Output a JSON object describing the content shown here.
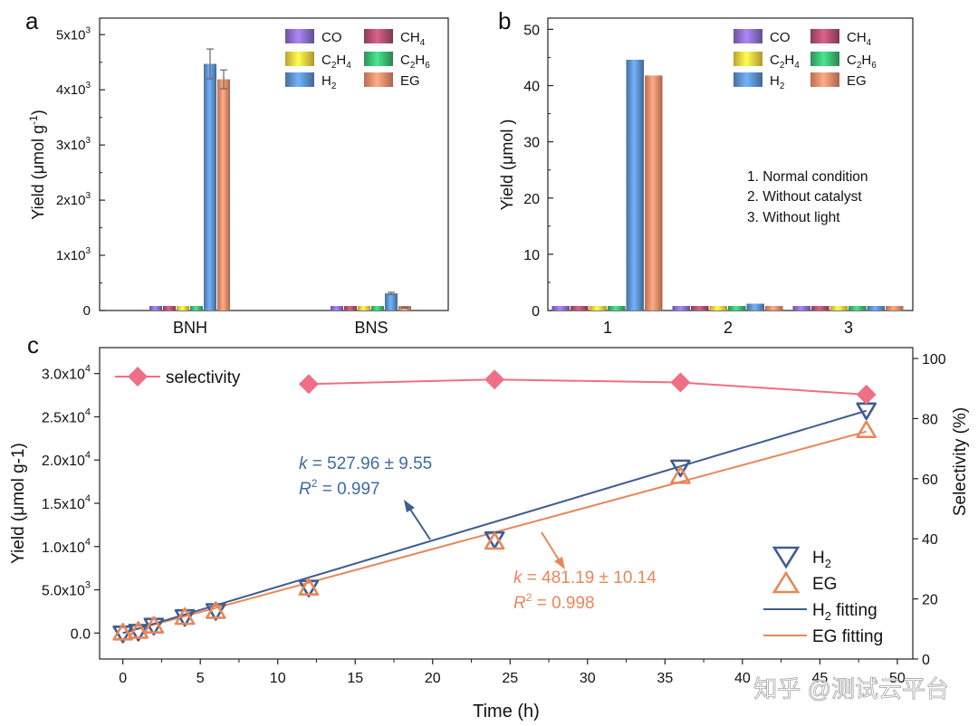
{
  "panels": {
    "a": {
      "label": "a",
      "ylabel_main": "Yield (",
      "ylabel_mu": "μ",
      "ylabel_rest": "mol g",
      "ylabel_sup": "-1",
      "ylabel_end": ")",
      "yticks": [
        {
          "value": 0,
          "mant": "0",
          "exp": ""
        },
        {
          "value": 1000,
          "mant": "1x10",
          "exp": "3"
        },
        {
          "value": 2000,
          "mant": "2x10",
          "exp": "3"
        },
        {
          "value": 3000,
          "mant": "3x10",
          "exp": "3"
        },
        {
          "value": 4000,
          "mant": "4x10",
          "exp": "3"
        },
        {
          "value": 5000,
          "mant": "5x10",
          "exp": "3"
        }
      ]
    },
    "b": {
      "label": "b",
      "ylabel": "Yield (μmol )",
      "yticks": [
        "0",
        "10",
        "20",
        "30",
        "40",
        "50"
      ],
      "notes": [
        "1. Normal condition",
        "2. Without catalyst",
        "3. Without light"
      ]
    },
    "c": {
      "label": "c",
      "xlabel": "Time (h)",
      "ylabel_left": "Yield (μmol g-1)",
      "ylabel_right": "Selectivity (%)",
      "xticks": [
        "0",
        "5",
        "10",
        "15",
        "20",
        "25",
        "30",
        "35",
        "40",
        "45",
        "50"
      ],
      "yticks_left": [
        {
          "value": 0,
          "mant": "0.0",
          "exp": ""
        },
        {
          "value": 5000,
          "mant": "5.0x10",
          "exp": "3"
        },
        {
          "value": 10000,
          "mant": "1.0x10",
          "exp": "4"
        },
        {
          "value": 15000,
          "mant": "1.5x10",
          "exp": "4"
        },
        {
          "value": 20000,
          "mant": "2.0x10",
          "exp": "4"
        },
        {
          "value": 25000,
          "mant": "2.5x10",
          "exp": "4"
        },
        {
          "value": 30000,
          "mant": "3.0x10",
          "exp": "4"
        }
      ],
      "yticks_right": [
        "0",
        "20",
        "40",
        "60",
        "80",
        "100"
      ],
      "h2_fit": {
        "k_label": "k",
        "k_text": " = 527.96 ± 9.55",
        "r2_label": "R",
        "r2_text": " = 0.997"
      },
      "eg_fit": {
        "k_label": "k",
        "k_text": " = 481.19 ± 10.14",
        "r2_label": "R",
        "r2_text": " = 0.998"
      },
      "legend": {
        "selectivity": "selectivity",
        "h2": "H",
        "eg": "EG",
        "h2_fit": "H",
        "h2_fit_suffix": " fitting",
        "eg_fit": "EG fitting"
      }
    }
  },
  "legend_ab": {
    "co": "CO",
    "ch4": "CH",
    "c2h4": "C",
    "c2h6": "C",
    "h2": "H",
    "eg": "EG"
  },
  "watermark": "知乎 @测试云平台",
  "colors": {
    "co": "#8a6cc8",
    "ch4": "#b04e6e",
    "c2h4": "#f5cf3f",
    "c2h6": "#3bb872",
    "h2": "#5b8fc9",
    "eg": "#f08a6a",
    "h2_line": "#3f5d8f",
    "eg_line": "#e8875a",
    "selectivity": "#ee6f86",
    "h2_text": "#3f6aa0",
    "eg_text": "#e8875a"
  },
  "chart_data": [
    {
      "type": "bar",
      "title": "a",
      "categories": [
        "BNH",
        "BNS"
      ],
      "ylabel": "Yield (μmol g-1)",
      "ylim": [
        0,
        5300
      ],
      "series": [
        {
          "name": "CO",
          "values": [
            40,
            35
          ]
        },
        {
          "name": "CH4",
          "values": [
            40,
            35
          ]
        },
        {
          "name": "C2H4",
          "values": [
            15,
            10
          ]
        },
        {
          "name": "C2H6",
          "values": [
            35,
            30
          ]
        },
        {
          "name": "H2",
          "values": [
            4470,
            310
          ],
          "errors": [
            270,
            20
          ]
        },
        {
          "name": "EG",
          "values": [
            4190,
            55
          ],
          "errors": [
            170,
            10
          ]
        }
      ]
    },
    {
      "type": "bar",
      "title": "b",
      "categories": [
        "1",
        "2",
        "3"
      ],
      "ylabel": "Yield (μmol )",
      "ylim": [
        0,
        52
      ],
      "series": [
        {
          "name": "CO",
          "values": [
            0.4,
            0.2,
            0.2
          ]
        },
        {
          "name": "CH4",
          "values": [
            0.4,
            0.2,
            0.2
          ]
        },
        {
          "name": "C2H4",
          "values": [
            0.1,
            0.1,
            0.1
          ]
        },
        {
          "name": "C2H6",
          "values": [
            0.3,
            0.2,
            0.2
          ]
        },
        {
          "name": "H2",
          "values": [
            44.6,
            1.2,
            0.2
          ]
        },
        {
          "name": "EG",
          "values": [
            41.8,
            0.2,
            0.2
          ]
        }
      ]
    },
    {
      "type": "scatter",
      "title": "c",
      "xlabel": "Time (h)",
      "ylabel": "Yield (μmol g-1)",
      "ylabel_right": "Selectivity (%)",
      "xlim": [
        -1.5,
        51
      ],
      "ylim": [
        -3000,
        33000
      ],
      "ylim_right": [
        0,
        100
      ],
      "series": [
        {
          "name": "H2",
          "x": [
            0,
            1,
            2,
            4,
            6,
            12,
            24,
            36,
            48
          ],
          "y": [
            0,
            200,
            900,
            1900,
            2600,
            5300,
            10900,
            19200,
            25800
          ]
        },
        {
          "name": "EG",
          "x": [
            0,
            1,
            2,
            4,
            6,
            12,
            24,
            36,
            48
          ],
          "y": [
            0,
            200,
            800,
            1800,
            2500,
            5200,
            10500,
            18100,
            23400
          ]
        },
        {
          "name": "H2 fitting",
          "type": "line",
          "x": [
            0,
            48
          ],
          "y": [
            0,
            25700
          ]
        },
        {
          "name": "EG fitting",
          "type": "line",
          "x": [
            0,
            48
          ],
          "y": [
            0,
            23300
          ]
        },
        {
          "name": "selectivity",
          "axis": "right",
          "x": [
            12,
            24,
            36,
            48
          ],
          "y": [
            91.5,
            93,
            92,
            88
          ]
        }
      ]
    }
  ]
}
